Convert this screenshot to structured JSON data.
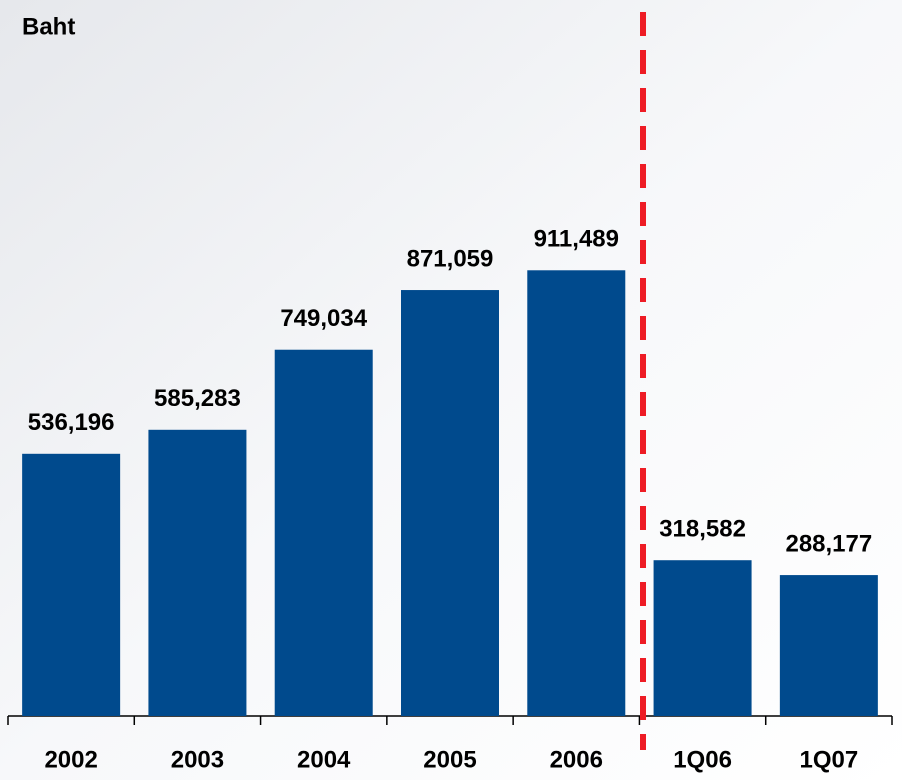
{
  "chart_data": {
    "type": "bar",
    "y_axis_label": "Baht",
    "categories": [
      "2002",
      "2003",
      "2004",
      "2005",
      "2006",
      "1Q06",
      "1Q07"
    ],
    "values": [
      536196,
      585283,
      749034,
      871059,
      911489,
      318582,
      288177
    ],
    "value_labels": [
      "536,196",
      "585,283",
      "749,034",
      "871,059",
      "911,489",
      "318,582",
      "288,177"
    ],
    "color": "#004a8d",
    "ylim": [
      0,
      1000000
    ]
  }
}
